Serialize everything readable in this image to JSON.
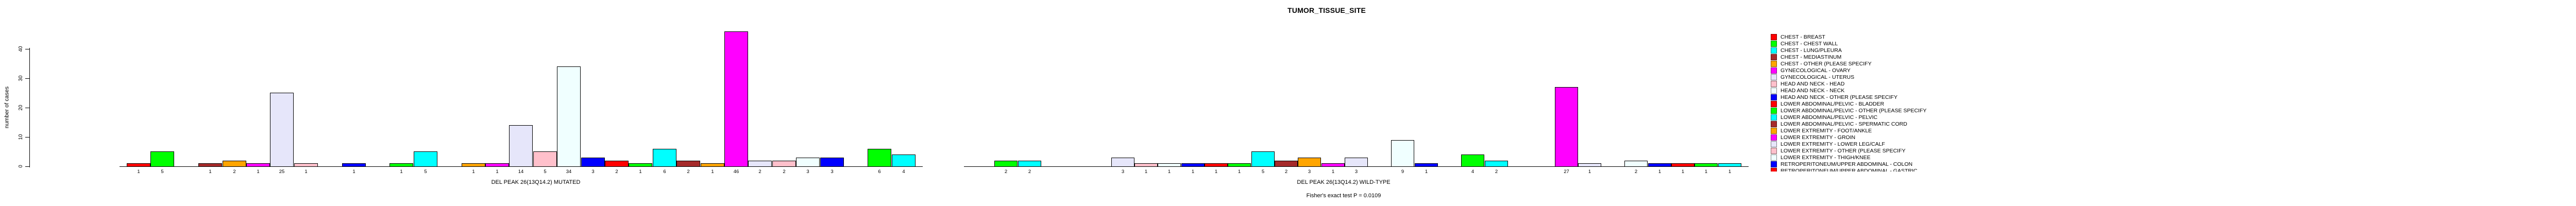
{
  "title": "TUMOR_TISSUE_SITE",
  "footer": "Fisher's exact test P = 0.0109",
  "chart_data": {
    "type": "bar",
    "title": "TUMOR_TISSUE_SITE",
    "xlabel": "",
    "ylabel": "number of cases",
    "yticks": [
      0,
      10,
      20,
      30,
      40
    ],
    "ylim": [
      0,
      48
    ],
    "grid": false,
    "legend_position": "right",
    "bar_value_labels": true,
    "color_cycle": [
      "#FF0000",
      "#00FF00",
      "#00FFFF",
      "#A52A2A",
      "#FFA500",
      "#FF00FF",
      "#E6E6FA",
      "#FFC0CB",
      "#F0FFFF",
      "#0000FF"
    ],
    "legend": [
      {
        "label": "CHEST - BREAST",
        "color": "#FF0000"
      },
      {
        "label": "CHEST - CHEST WALL",
        "color": "#00FF00"
      },
      {
        "label": "CHEST - LUNG/PLEURA",
        "color": "#00FFFF"
      },
      {
        "label": "CHEST - MEDIASTINUM",
        "color": "#A52A2A"
      },
      {
        "label": "CHEST - OTHER (PLEASE SPECIFY",
        "color": "#FFA500"
      },
      {
        "label": "GYNECOLOGICAL - OVARY",
        "color": "#FF00FF"
      },
      {
        "label": "GYNECOLOGICAL - UTERUS",
        "color": "#E6E6FA"
      },
      {
        "label": "HEAD AND NECK - HEAD",
        "color": "#FFC0CB"
      },
      {
        "label": "HEAD AND NECK - NECK",
        "color": "#F0FFFF"
      },
      {
        "label": "HEAD AND NECK - OTHER (PLEASE SPECIFY",
        "color": "#0000FF"
      },
      {
        "label": "LOWER ABDOMINAL/PELVIC - BLADDER",
        "color": "#FF0000"
      },
      {
        "label": "LOWER ABDOMINAL/PELVIC - OTHER (PLEASE SPECIFY",
        "color": "#00FF00"
      },
      {
        "label": "LOWER ABDOMINAL/PELVIC - PELVIC",
        "color": "#00FFFF"
      },
      {
        "label": "LOWER ABDOMINAL/PELVIC - SPERMATIC CORD",
        "color": "#A52A2A"
      },
      {
        "label": "LOWER EXTREMITY - FOOT/ANKLE",
        "color": "#FFA500"
      },
      {
        "label": "LOWER EXTREMITY - GROIN",
        "color": "#FF00FF"
      },
      {
        "label": "LOWER EXTREMITY - LOWER LEG/CALF",
        "color": "#E6E6FA"
      },
      {
        "label": "LOWER EXTREMITY - OTHER (PLEASE SPECIFY",
        "color": "#FFC0CB"
      },
      {
        "label": "LOWER EXTREMITY - THIGH/KNEE",
        "color": "#F0FFFF"
      },
      {
        "label": "RETROPERITONEUM/UPPER ABDOMINAL - COLON",
        "color": "#0000FF"
      },
      {
        "label": "RETROPERITONEUM/UPPER ABDOMINAL - GASTRIC",
        "color": "#FF0000",
        "clipped": true
      }
    ],
    "groups": [
      {
        "label": "DEL PEAK 26(13Q14.2) MUTATED",
        "values": [
          1,
          5,
          0,
          1,
          2,
          1,
          25,
          1,
          0,
          1,
          0,
          1,
          5,
          0,
          1,
          1,
          14,
          5,
          34,
          3,
          2,
          1,
          6,
          2,
          1,
          46,
          2,
          2,
          3,
          3,
          0,
          6,
          4
        ]
      },
      {
        "label": "DEL PEAK 26(13Q14.2) WILD-TYPE",
        "values": [
          0,
          2,
          2,
          0,
          0,
          0,
          3,
          1,
          1,
          1,
          1,
          1,
          5,
          2,
          3,
          1,
          3,
          0,
          9,
          1,
          0,
          4,
          2,
          0,
          0,
          27,
          1,
          0,
          2,
          1,
          1,
          1,
          1
        ]
      }
    ],
    "footer": "Fisher's exact test P = 0.0109"
  }
}
